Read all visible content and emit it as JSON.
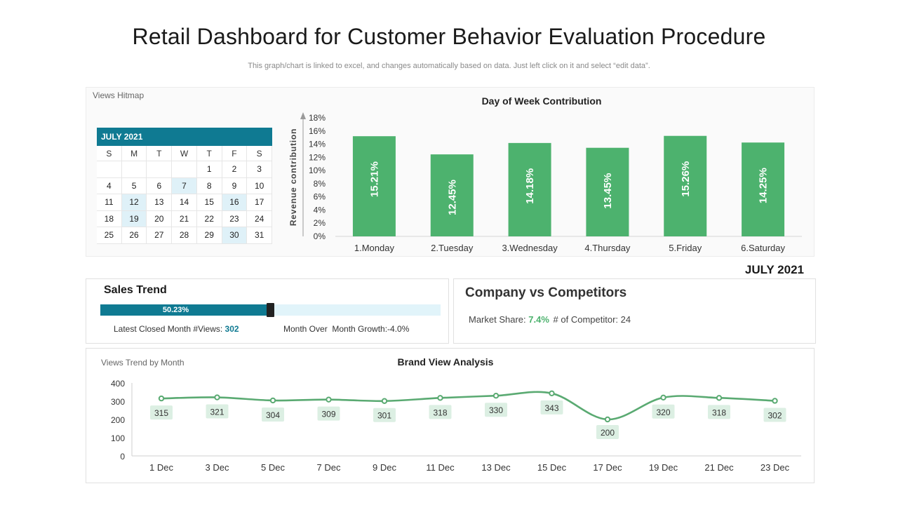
{
  "header": {
    "title": "Retail Dashboard for Customer Behavior Evaluation Procedure",
    "subtitle": "This graph/chart is linked to excel, and changes automatically based on data. Just left click on it and select “edit data”."
  },
  "heatmap": {
    "label": "Views Hitmap",
    "month": "JULY 2021",
    "weekdays": [
      "S",
      "M",
      "T",
      "W",
      "T",
      "F",
      "S"
    ],
    "weeks": [
      [
        "",
        "",
        "",
        "",
        "1",
        "2",
        "3"
      ],
      [
        "4",
        "5",
        "6",
        "7",
        "8",
        "9",
        "10"
      ],
      [
        "11",
        "12",
        "13",
        "14",
        "15",
        "16",
        "17"
      ],
      [
        "18",
        "19",
        "20",
        "21",
        "22",
        "23",
        "24"
      ],
      [
        "25",
        "26",
        "27",
        "28",
        "29",
        "30",
        "31"
      ]
    ],
    "highlighted": [
      "7",
      "12",
      "16",
      "19",
      "30"
    ],
    "highlight_color": "#dff1f8",
    "header_color": "#0f7a92"
  },
  "sales_trend": {
    "title": "Sales Trend",
    "progress_percent": 50.23,
    "progress_label": "50.23%",
    "latest_label": "Latest Closed Month #Views:",
    "latest_value": "302",
    "growth_text": "Month Over  Month Growth:-4.0%"
  },
  "competitors": {
    "month": "JULY 2021",
    "title": "Company vs Competitors",
    "market_share_label": "Market Share:",
    "market_share_value": "7.4%",
    "competitor_label": "# of Competitor:",
    "competitor_value": "24"
  },
  "trend_panel": {
    "label": "Views Trend by Month"
  },
  "colors": {
    "accent_teal": "#0f7a92",
    "bar_green": "#4db26e",
    "line_green": "#5aaa72",
    "label_bg": "#dcefe3"
  },
  "chart_data": [
    {
      "type": "bar",
      "title": "Day of Week Contribution",
      "ylabel": "Revenue contribution",
      "categories": [
        "1.Monday",
        "2.Tuesday",
        "3.Wednesday",
        "4.Thursday",
        "5.Friday",
        "6.Saturday"
      ],
      "values": [
        15.21,
        12.45,
        14.18,
        13.45,
        15.26,
        14.25
      ],
      "value_labels": [
        "15.21%",
        "12.45%",
        "14.18%",
        "13.45%",
        "15.26%",
        "14.25%"
      ],
      "ylim": [
        0,
        18
      ],
      "yticks": [
        "0%",
        "2%",
        "4%",
        "6%",
        "8%",
        "10%",
        "12%",
        "14%",
        "16%",
        "18%"
      ],
      "grid": false,
      "legend": "none"
    },
    {
      "type": "line",
      "title": "Brand View Analysis",
      "categories": [
        "1 Dec",
        "3 Dec",
        "5 Dec",
        "7 Dec",
        "9 Dec",
        "11 Dec",
        "13 Dec",
        "15 Dec",
        "17 Dec",
        "19 Dec",
        "21 Dec",
        "23 Dec"
      ],
      "values": [
        315,
        321,
        304,
        309,
        301,
        318,
        330,
        343,
        200,
        320,
        318,
        302
      ],
      "ylim": [
        0,
        400
      ],
      "yticks": [
        "0",
        "100",
        "200",
        "300",
        "400"
      ],
      "grid": false,
      "legend": "none"
    }
  ]
}
